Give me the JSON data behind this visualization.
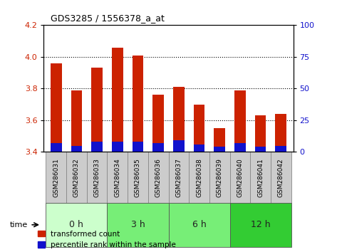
{
  "title": "GDS3285 / 1556378_a_at",
  "samples": [
    "GSM286031",
    "GSM286032",
    "GSM286033",
    "GSM286034",
    "GSM286035",
    "GSM286036",
    "GSM286037",
    "GSM286038",
    "GSM286039",
    "GSM286040",
    "GSM286041",
    "GSM286042"
  ],
  "transformed_count": [
    3.96,
    3.79,
    3.93,
    4.06,
    4.01,
    3.76,
    3.81,
    3.7,
    3.55,
    3.79,
    3.63,
    3.64
  ],
  "percentile_rank": [
    7,
    5,
    8,
    8,
    8,
    7,
    9,
    6,
    4,
    7,
    4,
    5
  ],
  "base_value": 3.4,
  "ylim_left": [
    3.4,
    4.2
  ],
  "ylim_right": [
    0,
    100
  ],
  "yticks_left": [
    3.4,
    3.6,
    3.8,
    4.0,
    4.2
  ],
  "yticks_right": [
    0,
    25,
    50,
    75,
    100
  ],
  "grid_yticks": [
    3.6,
    3.8,
    4.0
  ],
  "groups": [
    {
      "label": "0 h",
      "start": 0,
      "end": 3,
      "color": "#ccffcc"
    },
    {
      "label": "3 h",
      "start": 3,
      "end": 6,
      "color": "#66ee66"
    },
    {
      "label": "6 h",
      "start": 6,
      "end": 9,
      "color": "#66ee66"
    },
    {
      "label": "12 h",
      "start": 9,
      "end": 12,
      "color": "#33cc33"
    }
  ],
  "bar_width": 0.55,
  "red_color": "#cc2200",
  "blue_color": "#1111cc",
  "bg_color": "#ffffff",
  "plot_bg_color": "#ffffff",
  "grid_color": "#000000",
  "tick_label_color_left": "#cc2200",
  "tick_label_color_right": "#1111cc",
  "sample_box_color": "#cccccc",
  "sample_box_edge": "#888888",
  "legend_red": "transformed count",
  "legend_blue": "percentile rank within the sample",
  "time_label": "time"
}
